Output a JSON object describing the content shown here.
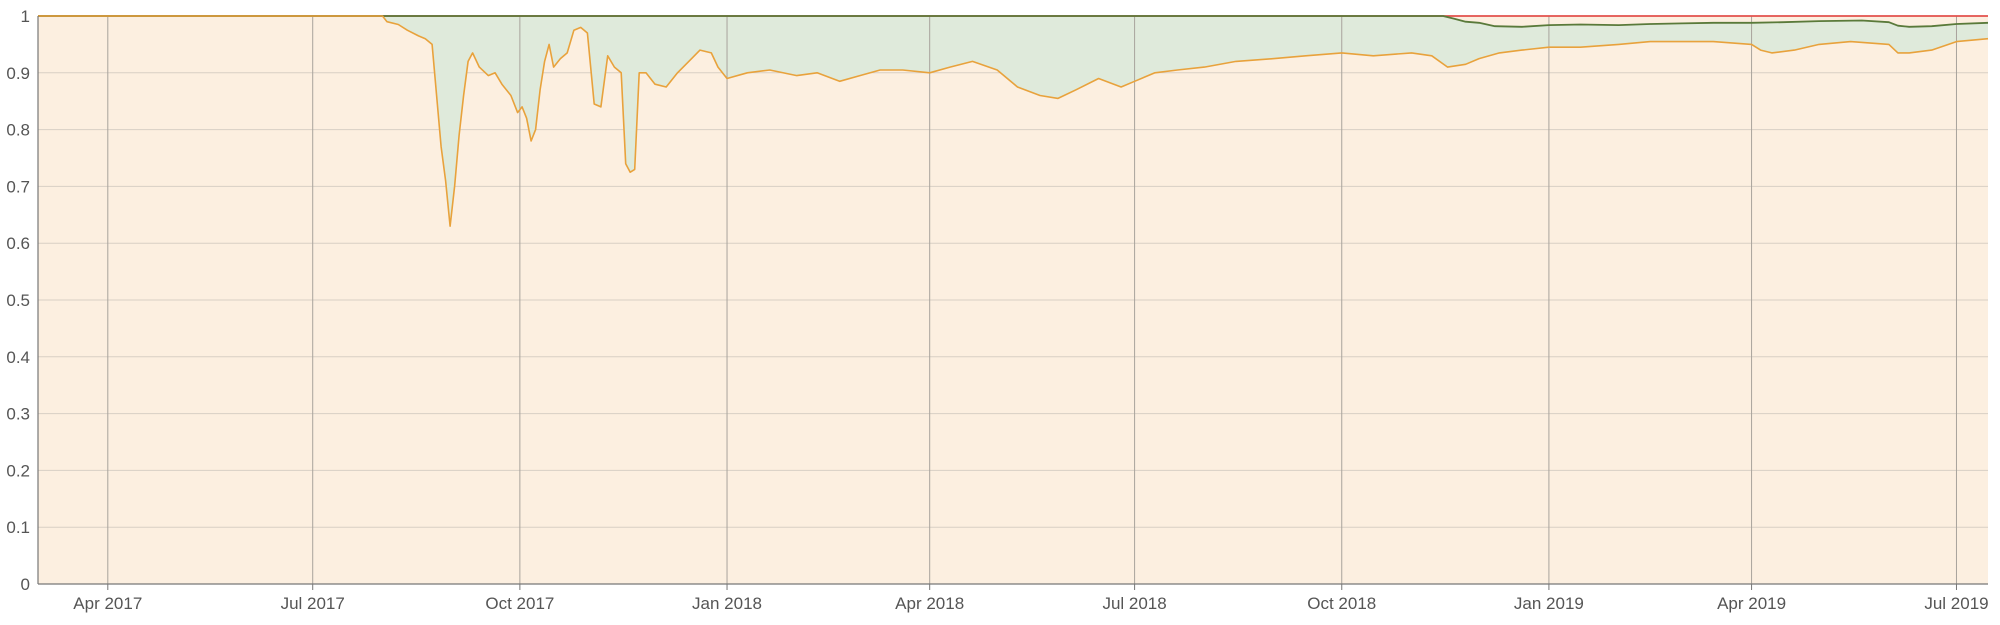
{
  "chart_data": {
    "type": "area",
    "title": "",
    "xlabel": "",
    "ylabel": "",
    "ylim": [
      0,
      1
    ],
    "xlim": [
      "2017-03-01",
      "2019-07-15"
    ],
    "grid": true,
    "legend": "none",
    "y_ticks": [
      {
        "value": 0,
        "label": "0"
      },
      {
        "value": 0.1,
        "label": "0.1"
      },
      {
        "value": 0.2,
        "label": "0.2"
      },
      {
        "value": 0.3,
        "label": "0.3"
      },
      {
        "value": 0.4,
        "label": "0.4"
      },
      {
        "value": 0.5,
        "label": "0.5"
      },
      {
        "value": 0.6,
        "label": "0.6"
      },
      {
        "value": 0.7,
        "label": "0.7"
      },
      {
        "value": 0.8,
        "label": "0.8"
      },
      {
        "value": 0.9,
        "label": "0.9"
      },
      {
        "value": 1,
        "label": "1"
      }
    ],
    "x_ticks": [
      {
        "date": "2017-04-01",
        "label": "Apr 2017"
      },
      {
        "date": "2017-07-01",
        "label": "Jul 2017"
      },
      {
        "date": "2017-10-01",
        "label": "Oct 2017"
      },
      {
        "date": "2018-01-01",
        "label": "Jan 2018"
      },
      {
        "date": "2018-04-01",
        "label": "Apr 2018"
      },
      {
        "date": "2018-07-01",
        "label": "Jul 2018"
      },
      {
        "date": "2018-10-01",
        "label": "Oct 2018"
      },
      {
        "date": "2019-01-01",
        "label": "Jan 2019"
      },
      {
        "date": "2019-04-01",
        "label": "Apr 2019"
      },
      {
        "date": "2019-07-01",
        "label": "Jul 2019"
      }
    ],
    "colors": {
      "plot_background": "#fcefe0",
      "fill_between": "#dfeadb",
      "grid": "#d8cfc4",
      "vertical_grid": "#a8a39c",
      "axis": "#777777",
      "red_line": "#e2504c",
      "green_line": "#5a7a3a",
      "orange_line": "#e8a23c"
    },
    "series": [
      {
        "color": "#e2504c",
        "points": [
          [
            "2017-03-01",
            1
          ],
          [
            "2019-07-15",
            1
          ]
        ]
      },
      {
        "color": "#5a7a3a",
        "points": [
          [
            "2017-03-01",
            1
          ],
          [
            "2018-11-15",
            1
          ],
          [
            "2018-11-20",
            0.995
          ],
          [
            "2018-11-25",
            0.99
          ],
          [
            "2018-12-01",
            0.988
          ],
          [
            "2018-12-08",
            0.982
          ],
          [
            "2018-12-20",
            0.981
          ],
          [
            "2019-01-01",
            0.984
          ],
          [
            "2019-01-15",
            0.985
          ],
          [
            "2019-02-01",
            0.984
          ],
          [
            "2019-02-15",
            0.986
          ],
          [
            "2019-03-01",
            0.987
          ],
          [
            "2019-03-15",
            0.988
          ],
          [
            "2019-04-01",
            0.988
          ],
          [
            "2019-04-15",
            0.989
          ],
          [
            "2019-05-01",
            0.991
          ],
          [
            "2019-05-20",
            0.992
          ],
          [
            "2019-06-01",
            0.989
          ],
          [
            "2019-06-05",
            0.983
          ],
          [
            "2019-06-10",
            0.981
          ],
          [
            "2019-06-20",
            0.982
          ],
          [
            "2019-07-01",
            0.986
          ],
          [
            "2019-07-15",
            0.988
          ]
        ]
      },
      {
        "color": "#e8a23c",
        "points": [
          [
            "2017-03-01",
            1
          ],
          [
            "2017-08-01",
            1
          ],
          [
            "2017-08-03",
            0.99
          ],
          [
            "2017-08-08",
            0.985
          ],
          [
            "2017-08-12",
            0.975
          ],
          [
            "2017-08-17",
            0.965
          ],
          [
            "2017-08-20",
            0.96
          ],
          [
            "2017-08-23",
            0.95
          ],
          [
            "2017-08-27",
            0.77
          ],
          [
            "2017-08-29",
            0.71
          ],
          [
            "2017-08-31",
            0.63
          ],
          [
            "2017-09-02",
            0.7
          ],
          [
            "2017-09-04",
            0.79
          ],
          [
            "2017-09-06",
            0.86
          ],
          [
            "2017-09-08",
            0.92
          ],
          [
            "2017-09-10",
            0.935
          ],
          [
            "2017-09-13",
            0.91
          ],
          [
            "2017-09-17",
            0.895
          ],
          [
            "2017-09-20",
            0.9
          ],
          [
            "2017-09-23",
            0.88
          ],
          [
            "2017-09-27",
            0.86
          ],
          [
            "2017-09-30",
            0.83
          ],
          [
            "2017-10-02",
            0.84
          ],
          [
            "2017-10-04",
            0.82
          ],
          [
            "2017-10-06",
            0.78
          ],
          [
            "2017-10-08",
            0.8
          ],
          [
            "2017-10-10",
            0.87
          ],
          [
            "2017-10-12",
            0.92
          ],
          [
            "2017-10-14",
            0.95
          ],
          [
            "2017-10-16",
            0.91
          ],
          [
            "2017-10-19",
            0.925
          ],
          [
            "2017-10-22",
            0.935
          ],
          [
            "2017-10-25",
            0.975
          ],
          [
            "2017-10-28",
            0.98
          ],
          [
            "2017-10-31",
            0.97
          ],
          [
            "2017-11-03",
            0.845
          ],
          [
            "2017-11-06",
            0.84
          ],
          [
            "2017-11-09",
            0.93
          ],
          [
            "2017-11-12",
            0.91
          ],
          [
            "2017-11-15",
            0.9
          ],
          [
            "2017-11-17",
            0.74
          ],
          [
            "2017-11-19",
            0.725
          ],
          [
            "2017-11-21",
            0.73
          ],
          [
            "2017-11-23",
            0.9
          ],
          [
            "2017-11-26",
            0.9
          ],
          [
            "2017-11-30",
            0.88
          ],
          [
            "2017-12-05",
            0.875
          ],
          [
            "2017-12-10",
            0.9
          ],
          [
            "2017-12-15",
            0.92
          ],
          [
            "2017-12-20",
            0.94
          ],
          [
            "2017-12-25",
            0.935
          ],
          [
            "2017-12-28",
            0.91
          ],
          [
            "2018-01-01",
            0.89
          ],
          [
            "2018-01-10",
            0.9
          ],
          [
            "2018-01-20",
            0.905
          ],
          [
            "2018-02-01",
            0.895
          ],
          [
            "2018-02-10",
            0.9
          ],
          [
            "2018-02-20",
            0.885
          ],
          [
            "2018-03-01",
            0.895
          ],
          [
            "2018-03-10",
            0.905
          ],
          [
            "2018-03-20",
            0.905
          ],
          [
            "2018-04-01",
            0.9
          ],
          [
            "2018-04-10",
            0.91
          ],
          [
            "2018-04-20",
            0.92
          ],
          [
            "2018-05-01",
            0.905
          ],
          [
            "2018-05-10",
            0.875
          ],
          [
            "2018-05-20",
            0.86
          ],
          [
            "2018-05-28",
            0.855
          ],
          [
            "2018-06-05",
            0.87
          ],
          [
            "2018-06-15",
            0.89
          ],
          [
            "2018-06-25",
            0.875
          ],
          [
            "2018-07-01",
            0.885
          ],
          [
            "2018-07-10",
            0.9
          ],
          [
            "2018-07-20",
            0.905
          ],
          [
            "2018-08-01",
            0.91
          ],
          [
            "2018-08-15",
            0.92
          ],
          [
            "2018-09-01",
            0.925
          ],
          [
            "2018-09-15",
            0.93
          ],
          [
            "2018-10-01",
            0.935
          ],
          [
            "2018-10-15",
            0.93
          ],
          [
            "2018-11-01",
            0.935
          ],
          [
            "2018-11-10",
            0.93
          ],
          [
            "2018-11-17",
            0.91
          ],
          [
            "2018-11-25",
            0.915
          ],
          [
            "2018-12-01",
            0.925
          ],
          [
            "2018-12-10",
            0.935
          ],
          [
            "2018-12-20",
            0.94
          ],
          [
            "2019-01-01",
            0.945
          ],
          [
            "2019-01-15",
            0.945
          ],
          [
            "2019-02-01",
            0.95
          ],
          [
            "2019-02-15",
            0.955
          ],
          [
            "2019-03-01",
            0.955
          ],
          [
            "2019-03-15",
            0.955
          ],
          [
            "2019-04-01",
            0.95
          ],
          [
            "2019-04-05",
            0.94
          ],
          [
            "2019-04-10",
            0.935
          ],
          [
            "2019-04-20",
            0.94
          ],
          [
            "2019-05-01",
            0.95
          ],
          [
            "2019-05-15",
            0.955
          ],
          [
            "2019-06-01",
            0.95
          ],
          [
            "2019-06-05",
            0.935
          ],
          [
            "2019-06-10",
            0.935
          ],
          [
            "2019-06-20",
            0.94
          ],
          [
            "2019-07-01",
            0.955
          ],
          [
            "2019-07-15",
            0.96
          ]
        ]
      }
    ]
  }
}
